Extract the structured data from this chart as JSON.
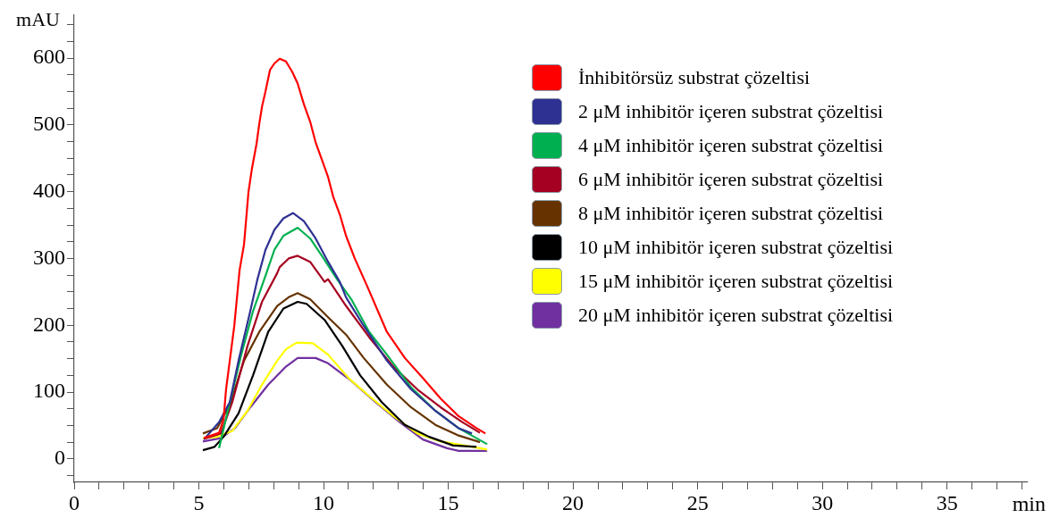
{
  "chart_data": {
    "type": "line",
    "xlabel": "min",
    "ylabel": "mAU",
    "xlim": [
      0,
      38.2
    ],
    "ylim": [
      -35,
      665
    ],
    "xticks": [
      0,
      {
        "value": 1,
        "label": null
      },
      {
        "value": 2,
        "label": null
      },
      {
        "value": 3,
        "label": null
      },
      {
        "value": 4,
        "label": null
      },
      5,
      {
        "value": 6,
        "label": null
      },
      {
        "value": 7,
        "label": null
      },
      {
        "value": 8,
        "label": null
      },
      {
        "value": 9,
        "label": null
      },
      10,
      {
        "value": 11,
        "label": null
      },
      {
        "value": 12,
        "label": null
      },
      {
        "value": 13,
        "label": null
      },
      {
        "value": 14,
        "label": null
      },
      15,
      {
        "value": 16,
        "label": null
      },
      {
        "value": 17,
        "label": null
      },
      {
        "value": 18,
        "label": null
      },
      {
        "value": 19,
        "label": null
      },
      20,
      {
        "value": 21,
        "label": null
      },
      {
        "value": 22,
        "label": null
      },
      {
        "value": 23,
        "label": null
      },
      {
        "value": 24,
        "label": null
      },
      25,
      {
        "value": 26,
        "label": null
      },
      {
        "value": 27,
        "label": null
      },
      {
        "value": 28,
        "label": null
      },
      {
        "value": 29,
        "label": null
      },
      30,
      {
        "value": 31,
        "label": null
      },
      {
        "value": 32,
        "label": null
      },
      {
        "value": 33,
        "label": null
      },
      {
        "value": 34,
        "label": null
      },
      35,
      {
        "value": 36,
        "label": null
      },
      {
        "value": 37,
        "label": null
      },
      {
        "value": 38,
        "label": null
      }
    ],
    "yticks": [
      {
        "value": -25,
        "label": null
      },
      0,
      {
        "value": 25,
        "label": null
      },
      {
        "value": 50,
        "label": null
      },
      {
        "value": 75,
        "label": null
      },
      100,
      {
        "value": 125,
        "label": null
      },
      {
        "value": 150,
        "label": null
      },
      {
        "value": 175,
        "label": null
      },
      200,
      {
        "value": 225,
        "label": null
      },
      {
        "value": 250,
        "label": null
      },
      {
        "value": 275,
        "label": null
      },
      300,
      {
        "value": 325,
        "label": null
      },
      {
        "value": 350,
        "label": null
      },
      {
        "value": 375,
        "label": null
      },
      400,
      {
        "value": 425,
        "label": null
      },
      {
        "value": 450,
        "label": null
      },
      {
        "value": 475,
        "label": null
      },
      500,
      {
        "value": 525,
        "label": null
      },
      {
        "value": 550,
        "label": null
      },
      {
        "value": 575,
        "label": null
      },
      600,
      {
        "value": 625,
        "label": null
      },
      {
        "value": 650,
        "label": null
      }
    ],
    "grid": false,
    "legend": "top right",
    "marker": "none",
    "line_style": "solid",
    "series": [
      {
        "name": "İnhibitörsüz substrat çözeltisi",
        "color": "#ff0000",
        "x": [
          5.2,
          5.81,
          5.99,
          6.09,
          6.42,
          6.63,
          6.81,
          6.99,
          7.13,
          7.31,
          7.42,
          7.53,
          7.67,
          7.85,
          8.03,
          8.24,
          8.49,
          8.75,
          8.96,
          9.21,
          9.46,
          9.68,
          9.93,
          10.18,
          10.39,
          10.65,
          10.9,
          11.25,
          11.72,
          12.54,
          13.26,
          13.98,
          14.7,
          15.41,
          16.13,
          16.49
        ],
        "values": [
          31,
          39,
          59,
          104,
          199,
          282,
          321,
          400,
          435,
          471,
          501,
          527,
          550,
          582,
          592,
          599,
          595,
          579,
          562,
          531,
          505,
          474,
          448,
          422,
          392,
          366,
          334,
          300,
          261,
          190,
          151,
          121,
          90,
          64,
          46,
          38
        ]
      },
      {
        "name": "2 μM inhibitör içeren substrat çözeltisi",
        "color": "#2e3192",
        "x": [
          5.2,
          5.81,
          6.24,
          6.59,
          7.06,
          7.35,
          7.67,
          8.03,
          8.39,
          8.78,
          9.21,
          9.68,
          10.18,
          10.65,
          10.9,
          11.61,
          12.54,
          13.51,
          14.48,
          15.41,
          15.95
        ],
        "values": [
          29,
          55,
          85,
          147,
          221,
          269,
          313,
          343,
          360,
          368,
          356,
          330,
          295,
          265,
          242,
          199,
          147,
          104,
          72,
          46,
          38
        ]
      },
      {
        "name": "4 μM inhibitör içeren substrat çözeltisi",
        "color": "#00b050",
        "x": [
          5.81,
          6.16,
          6.7,
          7.17,
          7.67,
          8.03,
          8.39,
          8.96,
          9.46,
          9.93,
          10.54,
          11.11,
          11.83,
          12.54,
          13.51,
          14.48,
          15.41,
          16.56
        ],
        "values": [
          16,
          72,
          156,
          221,
          274,
          313,
          334,
          346,
          330,
          304,
          269,
          239,
          190,
          156,
          107,
          72,
          46,
          22
        ]
      },
      {
        "name": "6 μM inhibitör içeren substrat çözeltisi",
        "color": "#a50021",
        "x": [
          5.2,
          5.88,
          6.34,
          6.95,
          7.53,
          8.14,
          8.24,
          8.6,
          8.96,
          9.46,
          10.04,
          10.18,
          10.9,
          11.83,
          12.8,
          13.76,
          14.7,
          15.56,
          16.27
        ],
        "values": [
          30,
          38,
          85,
          169,
          235,
          278,
          287,
          300,
          304,
          295,
          265,
          269,
          229,
          182,
          138,
          104,
          77,
          55,
          39
        ]
      },
      {
        "name": "8 μM inhibitör içeren substrat çözeltisi",
        "color": "#663300",
        "x": [
          5.16,
          5.73,
          6.24,
          6.81,
          7.42,
          8.14,
          8.6,
          8.96,
          9.46,
          10.18,
          10.9,
          11.61,
          12.54,
          13.51,
          14.48,
          15.41,
          16.27
        ],
        "values": [
          38,
          46,
          81,
          147,
          190,
          229,
          242,
          248,
          239,
          212,
          186,
          151,
          111,
          77,
          51,
          35,
          25
        ]
      },
      {
        "name": "10 μM inhibitör içeren substrat çözeltisi",
        "color": "#000000",
        "x": [
          5.16,
          5.63,
          5.99,
          6.59,
          7.17,
          7.78,
          8.39,
          8.96,
          9.32,
          10.04,
          10.75,
          11.47,
          12.33,
          13.26,
          14.23,
          15.2,
          16.13
        ],
        "values": [
          13,
          18,
          33,
          68,
          125,
          190,
          225,
          235,
          232,
          208,
          169,
          125,
          85,
          51,
          33,
          20,
          18
        ]
      },
      {
        "name": "15 μM inhibitör içeren substrat çözeltisi",
        "color": "#ffff00",
        "x": [
          5.16,
          5.73,
          6.34,
          6.95,
          7.53,
          8.14,
          8.49,
          8.92,
          9.57,
          10.18,
          11.0,
          11.83,
          12.8,
          13.76,
          14.7,
          15.66,
          16.56
        ],
        "values": [
          31,
          33,
          42,
          72,
          111,
          147,
          164,
          174,
          173,
          156,
          121,
          94,
          64,
          38,
          26,
          20,
          14
        ]
      },
      {
        "name": "20 μM inhibitör içeren substrat çözeltisi",
        "color": "#7030a0",
        "x": [
          5.16,
          5.88,
          6.45,
          7.06,
          7.78,
          8.49,
          8.96,
          9.68,
          10.18,
          11.11,
          12.08,
          13.05,
          13.98,
          14.95,
          15.41,
          16.56
        ],
        "values": [
          26,
          31,
          46,
          77,
          111,
          138,
          151,
          151,
          143,
          117,
          85,
          55,
          29,
          16,
          12,
          12
        ]
      }
    ]
  }
}
